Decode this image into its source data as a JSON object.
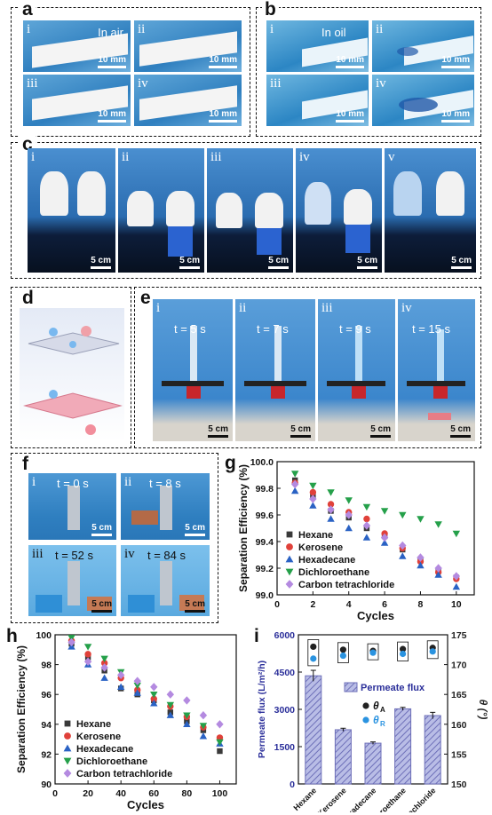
{
  "panels": {
    "a": {
      "label": "a",
      "subs": [
        {
          "roman": "i",
          "note": "In air",
          "scale": "10 mm"
        },
        {
          "roman": "ii",
          "note": "",
          "scale": "10 mm"
        },
        {
          "roman": "iii",
          "note": "",
          "scale": "10 mm"
        },
        {
          "roman": "iv",
          "note": "",
          "scale": "10 mm"
        }
      ]
    },
    "b": {
      "label": "b",
      "subs": [
        {
          "roman": "i",
          "note": "In oil",
          "scale": "10 mm"
        },
        {
          "roman": "ii",
          "note": "",
          "scale": "10 mm"
        },
        {
          "roman": "iii",
          "note": "",
          "scale": "10 mm"
        },
        {
          "roman": "iv",
          "note": "",
          "scale": "10 mm"
        }
      ]
    },
    "c": {
      "label": "c",
      "subs": [
        {
          "roman": "i",
          "scale": "5 cm"
        },
        {
          "roman": "ii",
          "scale": "5 cm"
        },
        {
          "roman": "iii",
          "scale": "5 cm"
        },
        {
          "roman": "iv",
          "scale": "5 cm"
        },
        {
          "roman": "v",
          "scale": "5 cm"
        }
      ]
    },
    "d": {
      "label": "d"
    },
    "e": {
      "label": "e",
      "subs": [
        {
          "roman": "i",
          "time": "t = 5 s",
          "scale": "5 cm"
        },
        {
          "roman": "ii",
          "time": "t = 7 s",
          "scale": "5 cm"
        },
        {
          "roman": "iii",
          "time": "t = 9 s",
          "scale": "5 cm"
        },
        {
          "roman": "iv",
          "time": "t = 15 s",
          "scale": "5 cm"
        }
      ]
    },
    "f": {
      "label": "f",
      "subs": [
        {
          "roman": "i",
          "time": "t = 0 s",
          "scale": "5 cm"
        },
        {
          "roman": "ii",
          "time": "t = 8 s",
          "scale": "5 cm"
        },
        {
          "roman": "iii",
          "time": "t = 52 s",
          "scale": "5 cm"
        },
        {
          "roman": "iv",
          "time": "t = 84 s",
          "scale": "5 cm"
        }
      ]
    },
    "g": {
      "label": "g"
    },
    "h": {
      "label": "h"
    },
    "i": {
      "label": "i"
    }
  },
  "colors": {
    "hexane": "#3a3a3a",
    "kerosene": "#e0413a",
    "hexadecane": "#2a62c4",
    "dichloroethane": "#25a04a",
    "carbon_tetrachloride": "#b48ae0",
    "bar_fill": "#6d6fb8",
    "axis_right": "#222222",
    "axis_left_i": "#2b2f9a"
  },
  "chart_data": [
    {
      "panel": "g",
      "type": "scatter",
      "xlabel": "Cycles",
      "ylabel": "Separation Efficiency (%)",
      "xlim": [
        0,
        11
      ],
      "ylim": [
        99.0,
        100.0
      ],
      "xticks": [
        "0",
        "2",
        "4",
        "6",
        "8",
        "10"
      ],
      "yticks": [
        "99.0",
        "99.2",
        "99.4",
        "99.6",
        "99.8",
        "100.0"
      ],
      "legend_position": "lower-left",
      "series": [
        {
          "name": "Hexane",
          "marker": "square",
          "x": [
            1,
            2,
            3,
            4,
            5,
            6,
            7,
            8,
            9,
            10
          ],
          "values": [
            99.86,
            99.74,
            99.63,
            99.58,
            99.5,
            99.44,
            99.34,
            99.26,
            99.18,
            99.13
          ]
        },
        {
          "name": "Kerosene",
          "marker": "circle",
          "x": [
            1,
            2,
            3,
            4,
            5,
            6,
            7,
            8,
            9,
            10
          ],
          "values": [
            99.84,
            99.77,
            99.68,
            99.62,
            99.57,
            99.46,
            99.35,
            99.25,
            99.17,
            99.12
          ]
        },
        {
          "name": "Hexadecane",
          "marker": "triangle-up",
          "x": [
            1,
            2,
            3,
            4,
            5,
            6,
            7,
            8,
            9,
            10
          ],
          "values": [
            99.78,
            99.67,
            99.57,
            99.5,
            99.43,
            99.39,
            99.29,
            99.22,
            99.15,
            99.06
          ]
        },
        {
          "name": "Dichloroethane",
          "marker": "triangle-down",
          "x": [
            1,
            2,
            3,
            4,
            5,
            6,
            7,
            8,
            9,
            10
          ],
          "values": [
            99.91,
            99.82,
            99.77,
            99.71,
            99.66,
            99.63,
            99.6,
            99.57,
            99.53,
            99.46
          ]
        },
        {
          "name": "Carbon tetrachloride",
          "marker": "diamond",
          "x": [
            1,
            2,
            3,
            4,
            5,
            6,
            7,
            8,
            9,
            10
          ],
          "values": [
            99.83,
            99.72,
            99.64,
            99.6,
            99.52,
            99.43,
            99.37,
            99.28,
            99.2,
            99.14
          ]
        }
      ]
    },
    {
      "panel": "h",
      "type": "scatter",
      "xlabel": "Cycles",
      "ylabel": "Separation Efficiency (%)",
      "xlim": [
        0,
        110
      ],
      "ylim": [
        90,
        100
      ],
      "xticks": [
        "0",
        "20",
        "40",
        "60",
        "80",
        "100"
      ],
      "yticks": [
        "90",
        "92",
        "94",
        "96",
        "98",
        "100"
      ],
      "legend_position": "lower-left",
      "series": [
        {
          "name": "Hexane",
          "marker": "square",
          "x": [
            10,
            20,
            30,
            40,
            50,
            60,
            70,
            80,
            90,
            100
          ],
          "values": [
            99.4,
            98.5,
            97.6,
            96.4,
            96.0,
            95.6,
            94.8,
            94.2,
            93.6,
            92.2
          ]
        },
        {
          "name": "Kerosene",
          "marker": "circle",
          "x": [
            10,
            20,
            30,
            40,
            50,
            60,
            70,
            80,
            90,
            100
          ],
          "values": [
            99.6,
            98.7,
            98.1,
            97.1,
            96.3,
            95.7,
            95.2,
            94.5,
            93.8,
            93.1
          ]
        },
        {
          "name": "Hexadecane",
          "marker": "triangle-up",
          "x": [
            10,
            20,
            30,
            40,
            50,
            60,
            70,
            80,
            90,
            100
          ],
          "values": [
            99.2,
            98.0,
            97.1,
            96.5,
            96.1,
            95.4,
            94.6,
            94.0,
            93.2,
            92.7
          ]
        },
        {
          "name": "Dichloroethane",
          "marker": "triangle-down",
          "x": [
            10,
            20,
            30,
            40,
            50,
            60,
            70,
            80,
            90,
            100
          ],
          "values": [
            99.8,
            99.2,
            98.4,
            97.5,
            96.6,
            96.0,
            95.3,
            94.6,
            93.9,
            92.8
          ]
        },
        {
          "name": "Carbon tetrachloride",
          "marker": "diamond",
          "x": [
            10,
            20,
            30,
            40,
            50,
            60,
            70,
            80,
            90,
            100
          ],
          "values": [
            99.5,
            98.2,
            97.8,
            97.3,
            96.9,
            96.5,
            96.0,
            95.6,
            94.6,
            94.0
          ]
        }
      ]
    },
    {
      "panel": "i",
      "type": "bar",
      "categories": [
        "Hexane",
        "Kerosene",
        "Hexadecane",
        "Dichloroethane",
        "Carbon tetrachloride"
      ],
      "ylabel": "Permeate flux (L/m²/h)",
      "ylabel2": "θ (°)",
      "ylim": [
        0,
        6000
      ],
      "ylim2": [
        150,
        175
      ],
      "yticks": [
        "0",
        "1500",
        "3000",
        "4500",
        "6000"
      ],
      "yticks2": [
        "150",
        "155",
        "160",
        "165",
        "170",
        "175"
      ],
      "series": [
        {
          "name": "Permeate flux",
          "values": [
            4350,
            2180,
            1640,
            3020,
            2750
          ],
          "errors": [
            220,
            60,
            50,
            60,
            130
          ]
        },
        {
          "name": "θA",
          "values": [
            173.0,
            172.5,
            172.3,
            172.6,
            172.8
          ]
        },
        {
          "name": "θR",
          "values": [
            171.0,
            171.5,
            172.0,
            171.8,
            172.2
          ]
        }
      ],
      "legend": {
        "flux": "Permeate flux",
        "thetaA": "θ",
        "thetaA_sub": "A",
        "thetaR": "θ",
        "thetaR_sub": "R"
      },
      "legend_position": "upper-right"
    }
  ]
}
